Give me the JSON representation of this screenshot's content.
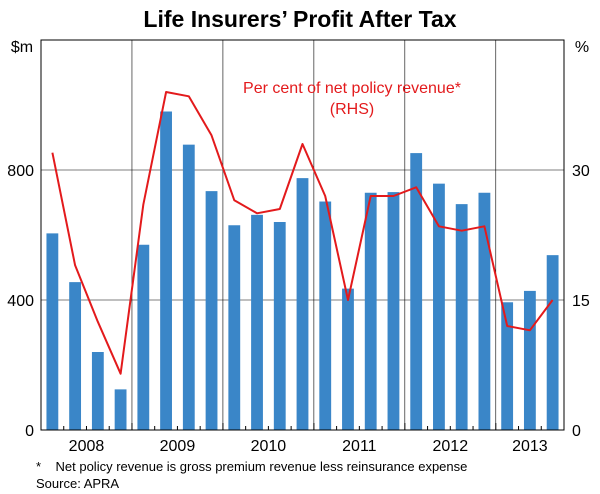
{
  "chart_data": {
    "type": "bar+line",
    "title": "Life Insurers’ Profit After Tax",
    "left_unit": "$m",
    "right_unit": "%",
    "left_ylim": [
      0,
      1200
    ],
    "right_ylim": [
      0,
      45
    ],
    "left_ticks": [
      {
        "value": 0,
        "label": "0"
      },
      {
        "value": 400,
        "label": "400"
      },
      {
        "value": 800,
        "label": "800"
      }
    ],
    "right_ticks": [
      {
        "value": 0,
        "label": "0"
      },
      {
        "value": 15,
        "label": "15"
      },
      {
        "value": 30,
        "label": "30"
      }
    ],
    "x_labels": [
      "2008",
      "2009",
      "2010",
      "2011",
      "2012",
      "2013"
    ],
    "quarters_per_year": 4,
    "first_quarter_index": 0,
    "bars": {
      "name": "Profit after tax ($m)",
      "color": "#3a86c8",
      "values": [
        605,
        455,
        240,
        125,
        570,
        980,
        878,
        735,
        630,
        662,
        640,
        775,
        703,
        435,
        730,
        732,
        852,
        758,
        695,
        730,
        393,
        428,
        538
      ]
    },
    "line": {
      "name": "Per cent of net policy revenue*",
      "axis": "right",
      "color": "#e31a1c",
      "values": [
        32,
        19,
        12.5,
        6.5,
        26,
        39,
        38.5,
        34,
        26.5,
        25,
        25.5,
        33,
        27,
        15,
        27,
        27,
        28,
        23.5,
        23,
        23.5,
        12,
        11.5,
        15
      ]
    },
    "annotation": {
      "line1": "Per cent of net policy revenue*",
      "line2": "(RHS)"
    },
    "footnote": "*    Net policy revenue is gross premium revenue less reinsurance expense",
    "source": "Source: APRA",
    "gridlines": true
  }
}
